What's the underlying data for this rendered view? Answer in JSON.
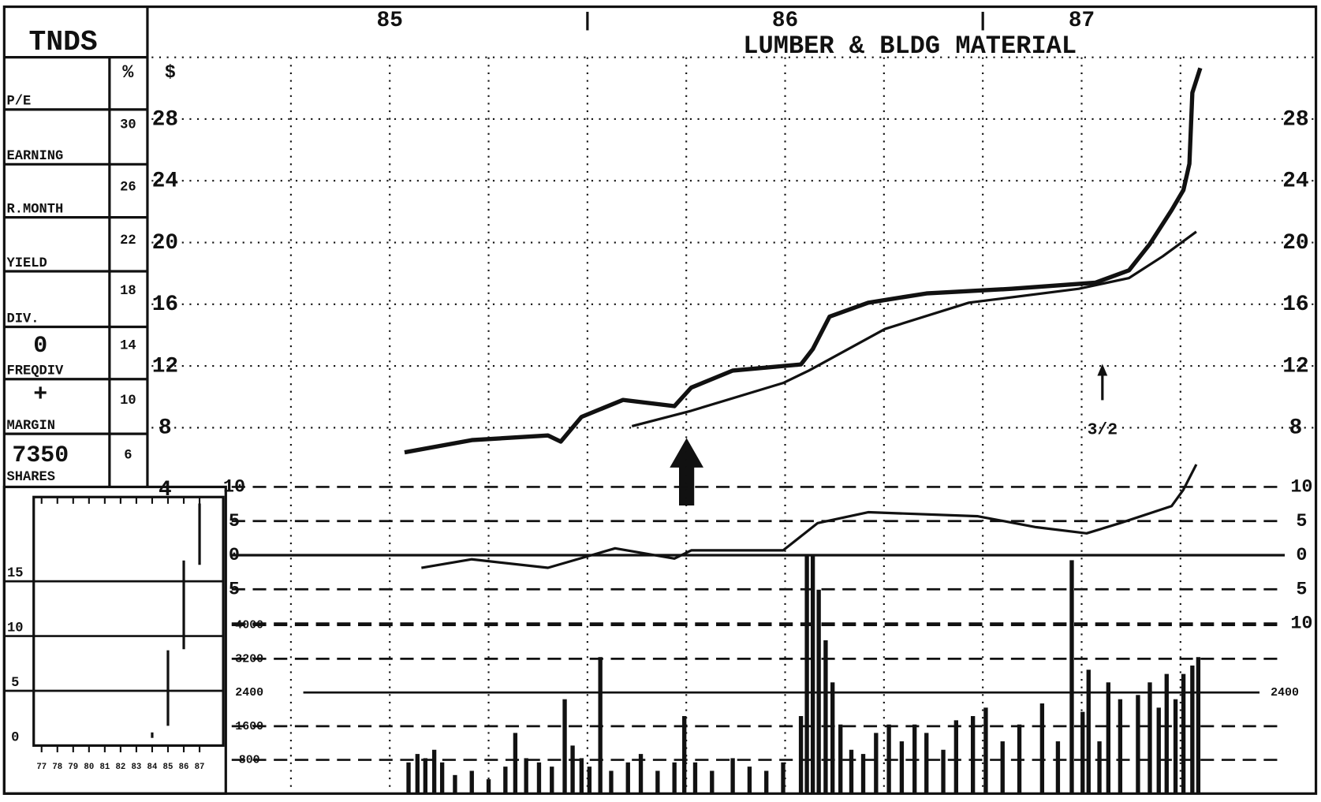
{
  "panel": {
    "symbol": "TNDS",
    "pct_header": "%",
    "price_header": "$",
    "labels": [
      "P/E",
      "EARNING",
      "R.MONTH",
      "YIELD",
      "DIV.",
      "0",
      "FREQDIV",
      "+",
      "MARGIN",
      "7350",
      "SHARES"
    ],
    "pct_scale": [
      "30",
      "26",
      "22",
      "18",
      "14",
      "10",
      "6"
    ]
  },
  "chart_data": [
    {
      "type": "line",
      "title": "LUMBER & BLDG MATERIAL",
      "xlim": [
        0,
        112
      ],
      "xticks": [
        {
          "value": 20,
          "label": "85"
        },
        {
          "value": 60,
          "label": "86"
        },
        {
          "value": 90,
          "label": "87"
        }
      ],
      "xminorticks": [
        40,
        80
      ],
      "xgrid": [
        10,
        20,
        30,
        40,
        50,
        60,
        70,
        80,
        90,
        100
      ],
      "ylim": [
        4,
        32
      ],
      "yticks": [
        4,
        8,
        12,
        16,
        20,
        24,
        28
      ],
      "yticks_right": [
        8,
        12,
        16,
        20,
        24,
        28
      ],
      "grid": true,
      "annotations": [
        {
          "text": "3/2",
          "x": 92.1
        }
      ],
      "series": [
        {
          "color": "#111",
          "x": [
            21.5,
            28.3,
            36.0,
            37.3,
            39.4,
            43.6,
            48.8,
            50.5,
            54.7,
            61.6,
            62.8,
            64.5,
            68.4,
            74.3,
            82.9,
            91.4,
            94.8,
            96.9,
            99.1,
            100.3,
            100.9,
            101.2,
            102.0
          ],
          "values": [
            6.4,
            7.2,
            7.5,
            7.1,
            8.7,
            9.8,
            9.4,
            10.6,
            11.7,
            12.1,
            13.1,
            15.2,
            16.1,
            16.7,
            17.0,
            17.4,
            18.2,
            19.9,
            22.1,
            23.4,
            25.1,
            29.7,
            31.3
          ]
        },
        {
          "color": "#111",
          "x": [
            44.5,
            50.5,
            59.8,
            62.4,
            70.1,
            78.6,
            89.7,
            94.8,
            98.2,
            101.6
          ],
          "values": [
            8.1,
            9.1,
            10.9,
            11.7,
            14.4,
            16.1,
            17.0,
            17.7,
            19.1,
            20.7
          ]
        }
      ]
    },
    {
      "type": "line",
      "xlim": [
        0,
        112
      ],
      "ylim": [
        -10,
        10
      ],
      "yticks": [
        10,
        5,
        0,
        {
          "value": -5,
          "label": "5"
        },
        {
          "value": -10,
          "label": "10"
        }
      ],
      "series": [
        {
          "color": "#111",
          "x": [
            23.2,
            28.3,
            36.0,
            42.8,
            48.8,
            50.5,
            59.8,
            63.3,
            68.4,
            79.5,
            85.4,
            90.5,
            93.9,
            99.1,
            100.3,
            101.6
          ],
          "values": [
            -1.85,
            -0.6,
            -1.85,
            1.0,
            -0.5,
            0.7,
            0.7,
            4.7,
            6.3,
            5.7,
            4.1,
            3.2,
            4.7,
            7.2,
            9.6,
            13.3
          ]
        }
      ]
    },
    {
      "type": "bar",
      "xlim": [
        0,
        112
      ],
      "ylim": [
        0,
        4000
      ],
      "yticks": [
        800,
        1600,
        2400,
        3200,
        4000
      ],
      "yticks_right": [
        2400
      ],
      "color": "#111",
      "x": [
        21.9,
        22.8,
        23.6,
        24.5,
        25.3,
        26.6,
        28.3,
        30.0,
        31.7,
        32.7,
        33.8,
        35.1,
        36.4,
        37.7,
        38.5,
        39.4,
        40.2,
        41.3,
        42.4,
        44.1,
        45.4,
        47.1,
        48.8,
        49.8,
        50.9,
        52.6,
        54.7,
        56.4,
        58.1,
        59.8,
        61.6,
        62.2,
        62.8,
        63.4,
        64.1,
        64.8,
        65.6,
        66.7,
        67.9,
        69.2,
        70.5,
        71.8,
        73.1,
        74.3,
        76.0,
        77.3,
        79.0,
        80.3,
        82.0,
        83.7,
        86.0,
        87.6,
        89.0,
        90.1,
        90.7,
        91.8,
        92.7,
        93.9,
        95.7,
        96.9,
        97.8,
        98.6,
        99.5,
        100.3,
        101.2,
        101.8
      ],
      "values": [
        740,
        940,
        840,
        1040,
        740,
        440,
        540,
        340,
        640,
        1440,
        840,
        740,
        640,
        2240,
        1140,
        840,
        640,
        3240,
        540,
        740,
        940,
        540,
        740,
        1840,
        740,
        540,
        840,
        640,
        540,
        740,
        1840,
        5640,
        5640,
        4840,
        3640,
        2640,
        1640,
        1040,
        940,
        1440,
        1640,
        1240,
        1640,
        1440,
        1040,
        1740,
        1840,
        2040,
        1240,
        1640,
        2140,
        1240,
        5540,
        1940,
        2940,
        1240,
        2640,
        2240,
        2340,
        2640,
        2040,
        2840,
        2240,
        2840,
        3040,
        3240
      ]
    },
    {
      "type": "range",
      "xlim": [
        76.5,
        88.5
      ],
      "ylim": [
        0,
        22
      ],
      "yticks": [
        0,
        5,
        10,
        15
      ],
      "xticks": [
        77,
        78,
        79,
        80,
        81,
        82,
        83,
        84,
        85,
        86,
        87
      ],
      "x": [
        84,
        85,
        86,
        87
      ],
      "low": [
        0.7,
        1.8,
        8.8,
        16.5
      ],
      "high": [
        1.2,
        8.7,
        16.9,
        22.1
      ]
    }
  ]
}
